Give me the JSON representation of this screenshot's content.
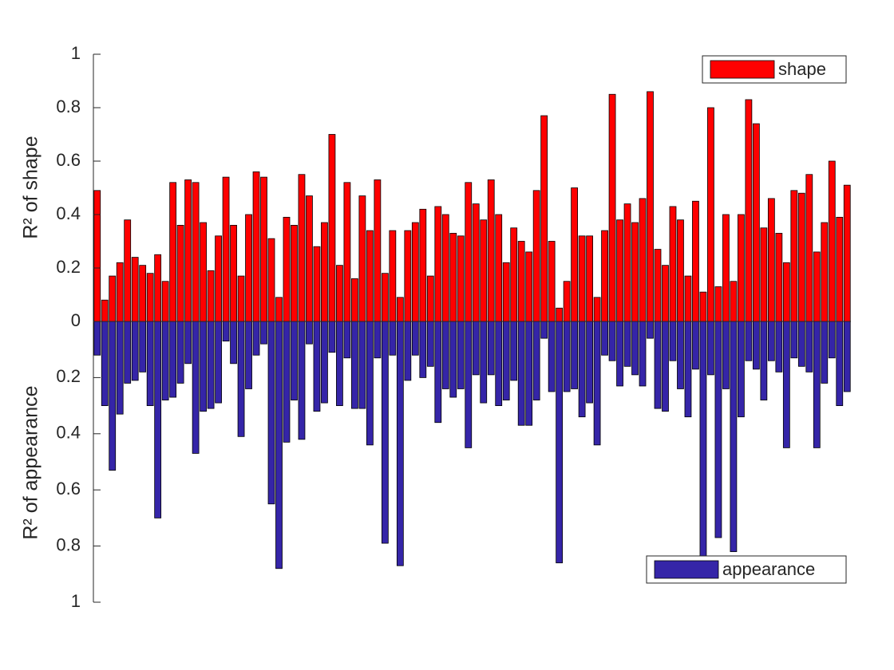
{
  "chart_data": {
    "type": "bar",
    "ylabel": "R² of shape",
    "y2label": "R² of appearance",
    "ylim": [
      0,
      1
    ],
    "yticks": [
      0,
      0.2,
      0.4,
      0.6,
      0.8,
      1
    ],
    "y2lim": [
      0,
      1
    ],
    "y2ticks": [
      0.2,
      0.4,
      0.6,
      0.8,
      1
    ],
    "y2_reversed": true,
    "series": [
      {
        "name": "shape",
        "color": "#ff0000",
        "legend": "northeast",
        "values": [
          0.49,
          0.08,
          0.17,
          0.22,
          0.38,
          0.24,
          0.21,
          0.18,
          0.25,
          0.15,
          0.52,
          0.36,
          0.53,
          0.52,
          0.37,
          0.19,
          0.32,
          0.54,
          0.36,
          0.17,
          0.4,
          0.56,
          0.54,
          0.31,
          0.09,
          0.39,
          0.36,
          0.55,
          0.47,
          0.28,
          0.37,
          0.7,
          0.21,
          0.52,
          0.16,
          0.47,
          0.34,
          0.53,
          0.18,
          0.34,
          0.09,
          0.34,
          0.37,
          0.42,
          0.17,
          0.43,
          0.4,
          0.33,
          0.32,
          0.52,
          0.44,
          0.38,
          0.53,
          0.4,
          0.22,
          0.35,
          0.3,
          0.26,
          0.49,
          0.77,
          0.3,
          0.05,
          0.15,
          0.5,
          0.32,
          0.32,
          0.09,
          0.34,
          0.85,
          0.38,
          0.44,
          0.37,
          0.46,
          0.86,
          0.27,
          0.21,
          0.43,
          0.38,
          0.17,
          0.45,
          0.11,
          0.8,
          0.13,
          0.4,
          0.15,
          0.4,
          0.83,
          0.74,
          0.35,
          0.46,
          0.33,
          0.22,
          0.49,
          0.48,
          0.55,
          0.26,
          0.37,
          0.6,
          0.39,
          0.51
        ]
      },
      {
        "name": "appearance",
        "color": "#3525a8",
        "legend": "southeast",
        "axis": "y2",
        "values": [
          0.12,
          0.3,
          0.53,
          0.33,
          0.22,
          0.21,
          0.18,
          0.3,
          0.7,
          0.28,
          0.27,
          0.22,
          0.15,
          0.47,
          0.32,
          0.31,
          0.29,
          0.07,
          0.15,
          0.41,
          0.24,
          0.12,
          0.08,
          0.65,
          0.88,
          0.43,
          0.28,
          0.42,
          0.08,
          0.32,
          0.29,
          0.11,
          0.3,
          0.13,
          0.31,
          0.31,
          0.44,
          0.13,
          0.79,
          0.12,
          0.87,
          0.21,
          0.12,
          0.2,
          0.16,
          0.36,
          0.24,
          0.27,
          0.24,
          0.45,
          0.19,
          0.29,
          0.19,
          0.3,
          0.28,
          0.21,
          0.37,
          0.37,
          0.28,
          0.06,
          0.25,
          0.86,
          0.25,
          0.24,
          0.34,
          0.29,
          0.44,
          0.12,
          0.14,
          0.23,
          0.16,
          0.19,
          0.23,
          0.06,
          0.31,
          0.32,
          0.14,
          0.24,
          0.34,
          0.17,
          0.87,
          0.19,
          0.77,
          0.24,
          0.82,
          0.34,
          0.14,
          0.17,
          0.28,
          0.14,
          0.18,
          0.45,
          0.13,
          0.16,
          0.18,
          0.45,
          0.22,
          0.13,
          0.3,
          0.25
        ]
      }
    ]
  }
}
